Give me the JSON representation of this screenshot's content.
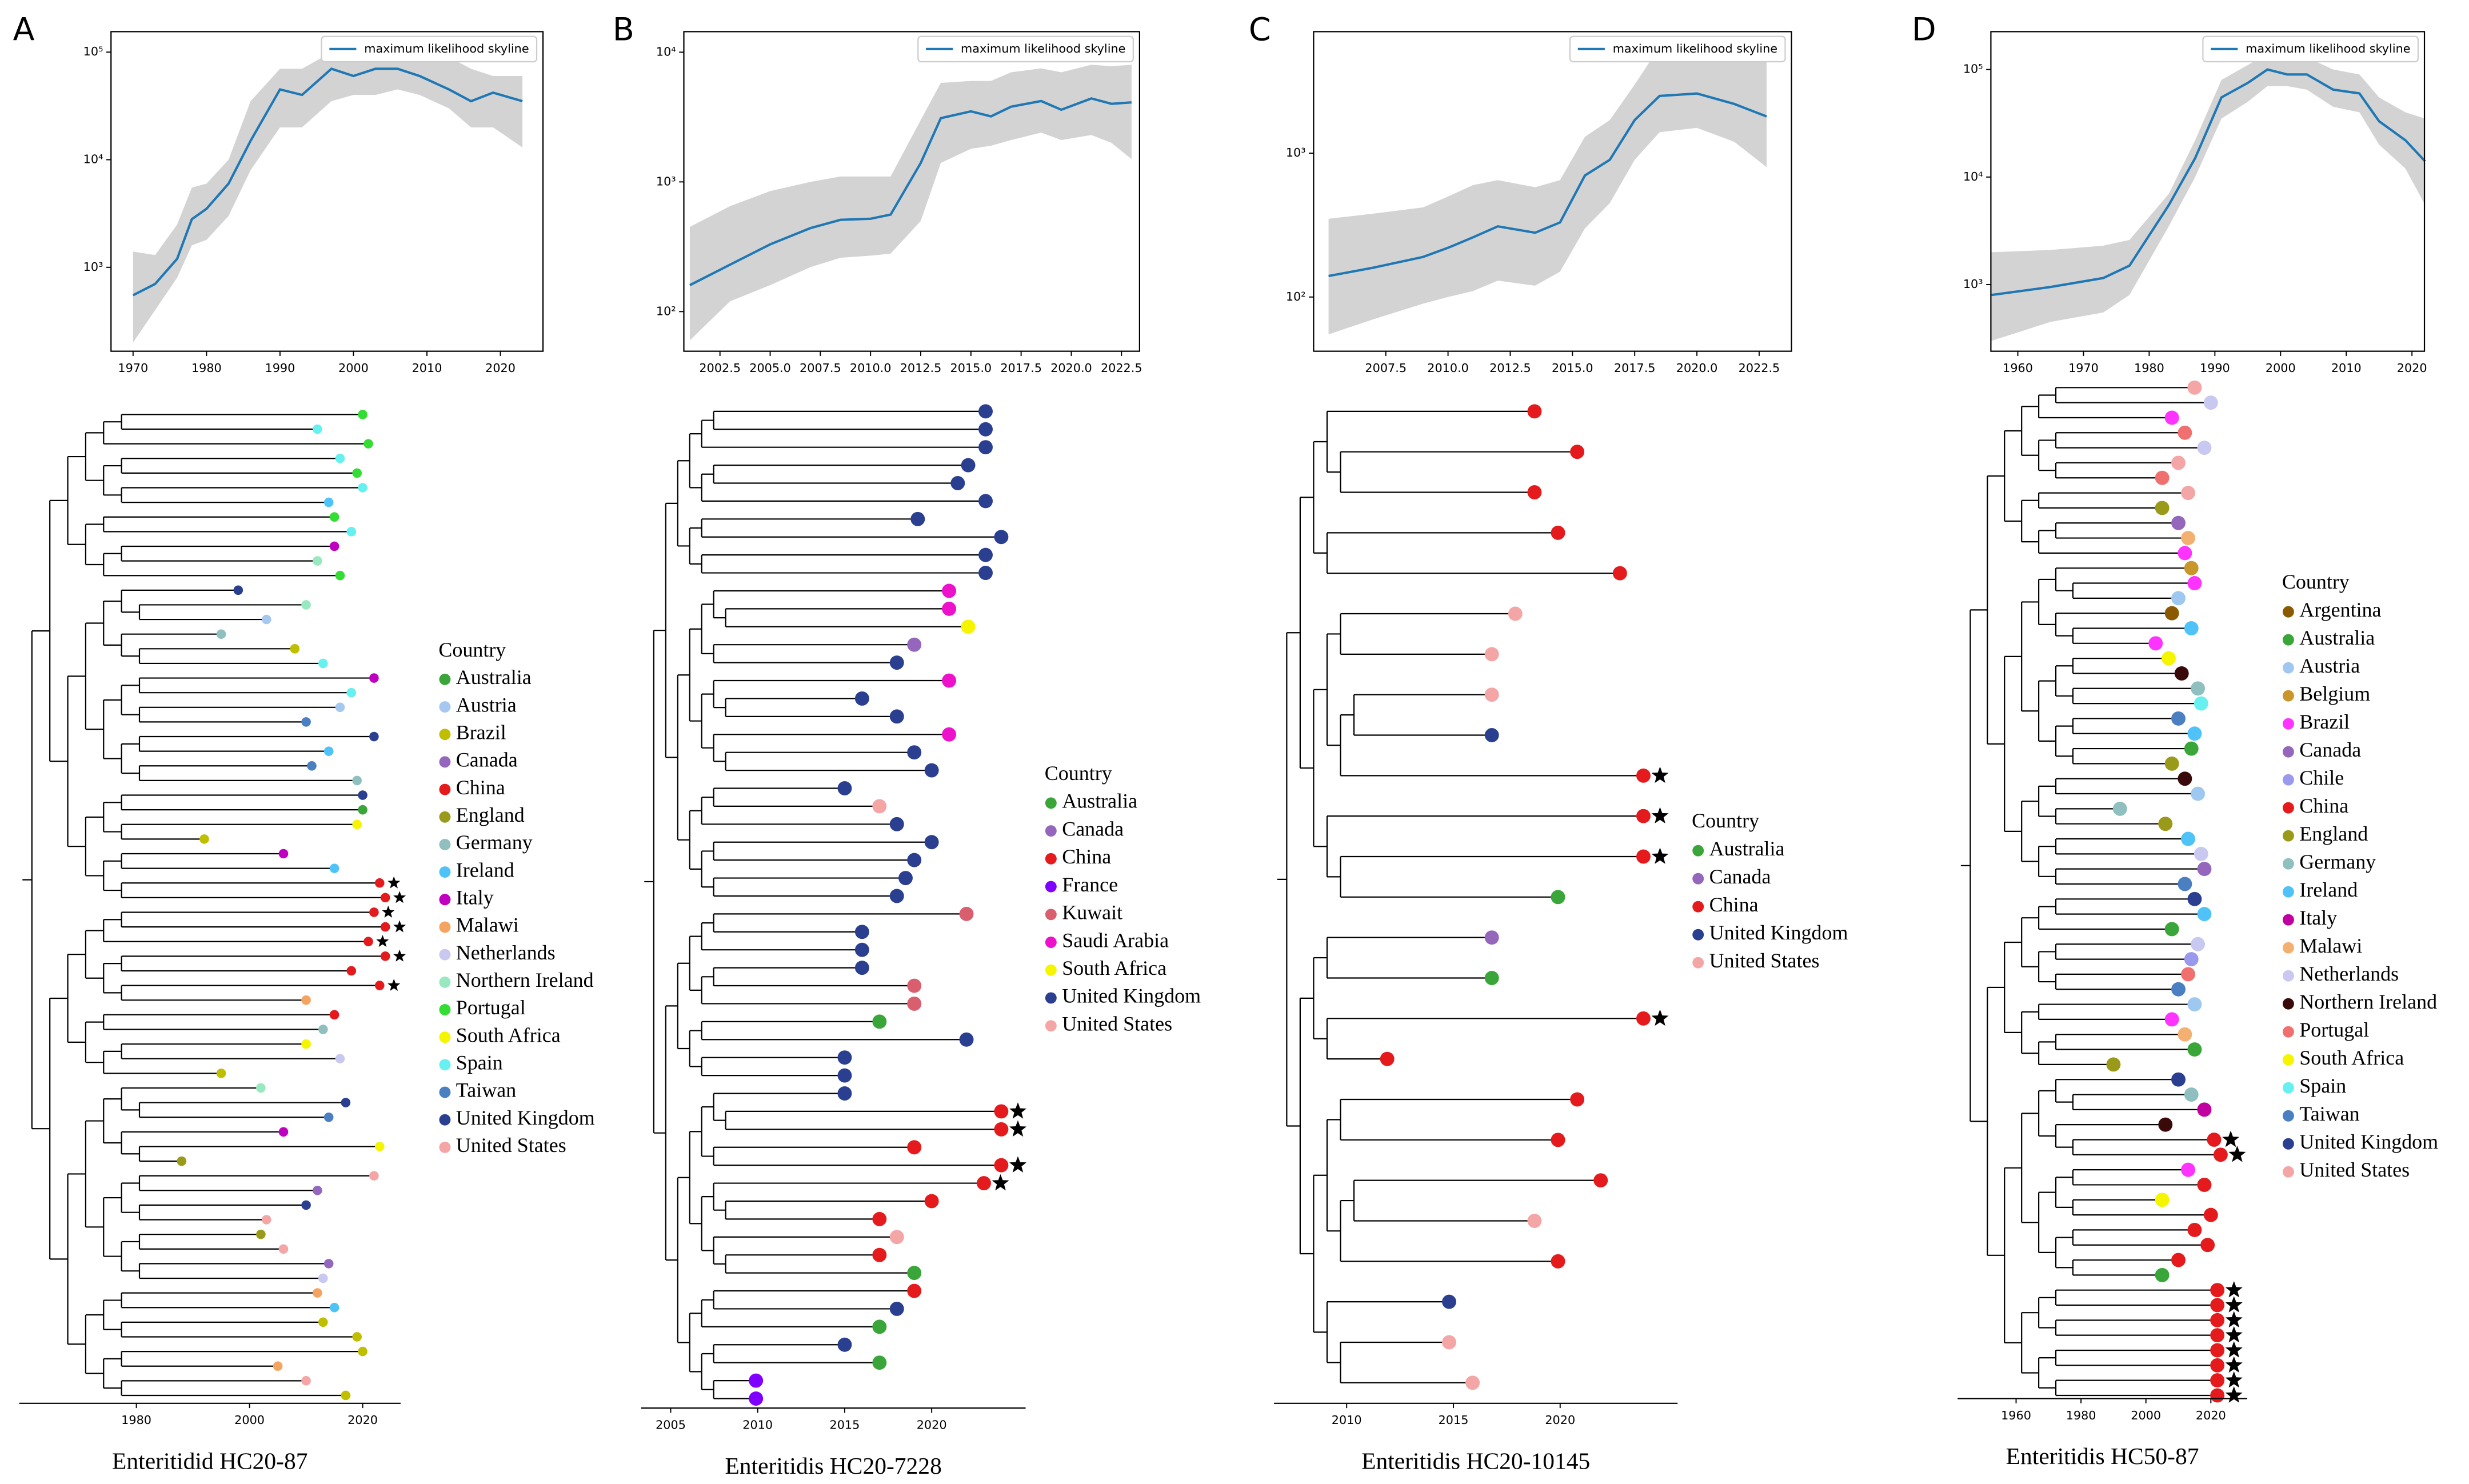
{
  "chart_data": [
    {
      "type": "line",
      "label": "A",
      "x": [
        1970,
        1973,
        1976,
        1978,
        1980,
        1983,
        1986,
        1990,
        1993,
        1997,
        2000,
        2003,
        2006,
        2009,
        2013,
        2016,
        2019,
        2023
      ],
      "series": [
        {
          "name": "maximum likelihood skyline",
          "color": "#1f77b4",
          "values": [
            550,
            700,
            1200,
            2800,
            3500,
            6000,
            15000,
            45000,
            40000,
            70000,
            60000,
            70000,
            70000,
            60000,
            45000,
            35000,
            42000,
            35000
          ],
          "lower": [
            200,
            400,
            800,
            1600,
            1800,
            3000,
            8000,
            20000,
            20000,
            35000,
            40000,
            40000,
            45000,
            40000,
            30000,
            20000,
            20000,
            13000
          ],
          "upper": [
            1400,
            1300,
            2500,
            5500,
            6000,
            10000,
            35000,
            70000,
            70000,
            100000,
            100000,
            120000,
            120000,
            110000,
            90000,
            70000,
            60000,
            60000
          ]
        }
      ],
      "band_color": "#d3d3d3",
      "log_y": true,
      "legend": "upper right",
      "xlim": [
        1967,
        2025.8
      ],
      "xticks": [
        1970,
        1980,
        1990,
        2000,
        2010,
        2020
      ],
      "ylim": [
        166,
        155000
      ],
      "yticks": [
        {
          "value": 1000,
          "label": "10³"
        },
        {
          "value": 10000,
          "label": "10⁴"
        },
        {
          "value": 100000,
          "label": "10⁵"
        }
      ]
    },
    {
      "type": "tree",
      "xlabel": "Enteritidid HC20-87",
      "xlim": [
        1959.3,
        2026.7
      ],
      "xticks": [
        1980,
        2000,
        2020
      ],
      "legend_title": "Country",
      "countries": [
        "Australia",
        "Austria",
        "Brazil",
        "Canada",
        "China",
        "England",
        "Germany",
        "Ireland",
        "Italy",
        "Malawi",
        "Netherlands",
        "Northern Ireland",
        "Portugal",
        "South Africa",
        "Spain",
        "Taiwan",
        "United Kingdom",
        "United States"
      ],
      "country_colors": [
        "#3aa63a",
        "#a6c8f0",
        "#bfbf00",
        "#9467bd",
        "#e41a1c",
        "#9a9a1a",
        "#8fbfbf",
        "#4fc3f7",
        "#c000c0",
        "#f4a460",
        "#c8c8f0",
        "#98e8c0",
        "#33dd33",
        "#f5f500",
        "#66f0f0",
        "#4a7fc1",
        "#2a3f8f",
        "#f4a6a6"
      ],
      "tip_countries": [
        "Portugal",
        "Spain",
        "Portugal",
        "Spain",
        "Portugal",
        "Spain",
        "Ireland",
        "Portugal",
        "Spain",
        "Italy",
        "Northern Ireland",
        "Portugal",
        "United Kingdom",
        "Northern Ireland",
        "Austria",
        "Germany",
        "Brazil",
        "Spain",
        "Italy",
        "Spain",
        "Austria",
        "Taiwan",
        "United Kingdom",
        "Ireland",
        "Taiwan",
        "Germany",
        "United Kingdom",
        "Australia",
        "South Africa",
        "Brazil",
        "Italy",
        "Ireland",
        "China",
        "China",
        "China",
        "China",
        "China",
        "China",
        "China",
        "China",
        "Malawi",
        "China",
        "Germany",
        "South Africa",
        "Netherlands",
        "Brazil",
        "Northern Ireland",
        "United Kingdom",
        "Taiwan",
        "Italy",
        "South Africa",
        "England",
        "United States",
        "Canada",
        "United Kingdom",
        "United States",
        "England",
        "United States",
        "Canada",
        "Netherlands",
        "Malawi",
        "Ireland",
        "Brazil",
        "Brazil",
        "Brazil",
        "Malawi",
        "United States",
        "Brazil"
      ],
      "tip_years": [
        2020,
        2012,
        2021,
        2016,
        2019,
        2020,
        2014,
        2015,
        2018,
        2015,
        2012,
        2016,
        1998,
        2010,
        2003,
        1995,
        2008,
        2013,
        2022,
        2018,
        2016,
        2010,
        2022,
        2014,
        2011,
        2019,
        2020,
        2020,
        2019,
        1992,
        2006,
        2015,
        2023,
        2024,
        2022,
        2024,
        2021,
        2024,
        2018,
        2023,
        2010,
        2015,
        2013,
        2010,
        2016,
        1995,
        2002,
        2017,
        2014,
        2006,
        2023,
        1988,
        2022,
        2012,
        2010,
        2003,
        2002,
        2006,
        2014,
        2013,
        2012,
        2015,
        2013,
        2019,
        2020,
        2005,
        2010,
        2017
      ],
      "starred": [
        32,
        33,
        34,
        35,
        36,
        37,
        39
      ]
    },
    {
      "type": "line",
      "label": "B",
      "x": [
        2001,
        2003,
        2005,
        2007,
        2008.5,
        2010,
        2011,
        2012.5,
        2013.5,
        2015,
        2016,
        2017,
        2018.5,
        2019.5,
        2021,
        2022,
        2023
      ],
      "series": [
        {
          "name": "maximum likelihood skyline",
          "color": "#1f77b4",
          "values": [
            160,
            230,
            330,
            440,
            510,
            520,
            560,
            1400,
            3100,
            3500,
            3200,
            3800,
            4200,
            3600,
            4400,
            4000,
            4100
          ],
          "lower": [
            60,
            120,
            160,
            220,
            260,
            270,
            280,
            500,
            1400,
            1800,
            1900,
            2100,
            2400,
            2100,
            2300,
            2000,
            1500
          ],
          "upper": [
            450,
            650,
            850,
            1000,
            1100,
            1100,
            1100,
            3000,
            5800,
            6000,
            6000,
            7000,
            7500,
            7000,
            8000,
            7800,
            8000
          ]
        }
      ],
      "band_color": "#d3d3d3",
      "log_y": true,
      "legend": "upper right",
      "xlim": [
        2000.7,
        2023.4
      ],
      "xticks": [
        2002.5,
        {
          "value": 2005,
          "label": "2005.0"
        },
        2007.5,
        {
          "value": 2010,
          "label": "2010.0"
        },
        2012.5,
        {
          "value": 2015,
          "label": "2015.0"
        },
        2017.5,
        {
          "value": 2020,
          "label": "2020.0"
        },
        2022.5
      ],
      "ylim": [
        49.5,
        14400
      ],
      "yticks": [
        {
          "value": 100,
          "label": "10²"
        },
        {
          "value": 1000,
          "label": "10³"
        },
        {
          "value": 10000,
          "label": "10⁴"
        }
      ]
    },
    {
      "type": "tree",
      "xlabel": "Enteritidis HC20-7228",
      "xlim": [
        2003.3,
        2025.4
      ],
      "xticks": [
        2005,
        2010,
        2015,
        2020
      ],
      "legend_title": "Country",
      "countries": [
        "Australia",
        "Canada",
        "China",
        "France",
        "Kuwait",
        "Saudi Arabia",
        "South Africa",
        "United Kingdom",
        "United States"
      ],
      "country_colors": [
        "#3aa63a",
        "#9467bd",
        "#e41a1c",
        "#7f00ff",
        "#d95f6e",
        "#ee11cc",
        "#f5f500",
        "#2a3f8f",
        "#f4a6a6"
      ],
      "tip_countries": [
        "United Kingdom",
        "United Kingdom",
        "United Kingdom",
        "United Kingdom",
        "United Kingdom",
        "United Kingdom",
        "United Kingdom",
        "United Kingdom",
        "United Kingdom",
        "United Kingdom",
        "Saudi Arabia",
        "Saudi Arabia",
        "South Africa",
        "Canada",
        "United Kingdom",
        "Saudi Arabia",
        "United Kingdom",
        "United Kingdom",
        "Saudi Arabia",
        "United Kingdom",
        "United Kingdom",
        "United Kingdom",
        "United States",
        "United Kingdom",
        "United Kingdom",
        "United Kingdom",
        "United Kingdom",
        "United Kingdom",
        "Kuwait",
        "United Kingdom",
        "United Kingdom",
        "United Kingdom",
        "Kuwait",
        "Kuwait",
        "Australia",
        "United Kingdom",
        "United Kingdom",
        "United Kingdom",
        "United Kingdom",
        "China",
        "China",
        "China",
        "China",
        "China",
        "China",
        "China",
        "United States",
        "China",
        "Australia",
        "China",
        "United Kingdom",
        "Australia",
        "United Kingdom",
        "Australia",
        "France",
        "France"
      ],
      "tip_years": [
        2023.1,
        2023.1,
        2023.1,
        2022.1,
        2021.5,
        2023.1,
        2019.2,
        2024,
        2023.1,
        2023.1,
        2021,
        2021,
        2022.1,
        2019,
        2018,
        2021,
        2016,
        2018,
        2021,
        2019,
        2020,
        2015,
        2017,
        2018,
        2020,
        2019,
        2018.5,
        2018,
        2022,
        2016,
        2016,
        2016,
        2019,
        2019,
        2017,
        2022,
        2015,
        2015,
        2015,
        2024,
        2024,
        2019,
        2024,
        2023,
        2020,
        2017,
        2018,
        2017,
        2019,
        2019,
        2018,
        2017,
        2015,
        2017,
        2009.9,
        2009.9
      ],
      "starred": [
        39,
        40,
        42,
        43
      ]
    },
    {
      "type": "line",
      "label": "C",
      "x": [
        2005.2,
        2007,
        2009,
        2010,
        2011,
        2012,
        2013.5,
        2014.5,
        2015.5,
        2016.5,
        2017.5,
        2018.5,
        2020,
        2021.5,
        2022.8
      ],
      "series": [
        {
          "name": "maximum likelihood skyline",
          "color": "#1f77b4",
          "values": [
            140,
            160,
            190,
            220,
            260,
            310,
            280,
            330,
            700,
            900,
            1700,
            2500,
            2600,
            2200,
            1800
          ],
          "lower": [
            55,
            70,
            90,
            100,
            110,
            130,
            120,
            150,
            300,
            450,
            900,
            1400,
            1500,
            1200,
            800
          ],
          "upper": [
            350,
            380,
            420,
            500,
            600,
            650,
            580,
            650,
            1300,
            1700,
            3000,
            5500,
            6500,
            6000,
            4500
          ]
        }
      ],
      "band_color": "#d3d3d3",
      "log_y": true,
      "legend": "upper right",
      "xlim": [
        2004.6,
        2023.8
      ],
      "xticks": [
        2007.5,
        {
          "value": 2010,
          "label": "2010.0"
        },
        2012.5,
        {
          "value": 2015,
          "label": "2015.0"
        },
        2017.5,
        {
          "value": 2020,
          "label": "2020.0"
        },
        2022.5
      ],
      "ylim": [
        42,
        7000
      ],
      "yticks": [
        {
          "value": 100,
          "label": "10²"
        },
        {
          "value": 1000,
          "label": "10³"
        }
      ]
    },
    {
      "type": "tree",
      "xlabel": "Enteritidis HC20-10145",
      "xlim": [
        2006.6,
        2025.5
      ],
      "xticks": [
        2010,
        2015,
        2020
      ],
      "legend_title": "Country",
      "countries": [
        "Australia",
        "Canada",
        "China",
        "United Kingdom",
        "United States"
      ],
      "country_colors": [
        "#3aa63a",
        "#9467bd",
        "#e41a1c",
        "#2a3f8f",
        "#f4a6a6"
      ],
      "tip_countries": [
        "China",
        "China",
        "China",
        "China",
        "China",
        "United States",
        "United States",
        "United States",
        "United Kingdom",
        "China",
        "China",
        "China",
        "Australia",
        "Canada",
        "Australia",
        "China",
        "China",
        "China",
        "China",
        "China",
        "United States",
        "China",
        "United Kingdom",
        "United States",
        "United States"
      ],
      "tip_years": [
        2018.8,
        2020.8,
        2018.8,
        2019.9,
        2022.8,
        2017.9,
        2016.8,
        2016.8,
        2016.8,
        2023.9,
        2023.9,
        2023.9,
        2019.9,
        2016.8,
        2016.8,
        2023.9,
        2011.9,
        2020.8,
        2019.9,
        2021.9,
        2018.8,
        2019.9,
        2014.8,
        2014.8,
        2015.9
      ],
      "starred": [
        9,
        10,
        11,
        15
      ]
    },
    {
      "type": "line",
      "label": "D",
      "x": [
        1956,
        1965,
        1973,
        1977,
        1983,
        1987,
        1991,
        1995,
        1998,
        2001,
        2004,
        2008,
        2012,
        2015,
        2019,
        2022
      ],
      "series": [
        {
          "name": "maximum likelihood skyline",
          "color": "#1f77b4",
          "values": [
            800,
            950,
            1150,
            1500,
            5500,
            15000,
            55000,
            75000,
            100000,
            90000,
            90000,
            65000,
            60000,
            33000,
            22000,
            14000
          ],
          "lower": [
            300,
            450,
            550,
            800,
            3500,
            10000,
            35000,
            50000,
            70000,
            70000,
            65000,
            45000,
            40000,
            20000,
            12000,
            5500
          ],
          "upper": [
            2000,
            2100,
            2300,
            2600,
            7000,
            22000,
            80000,
            110000,
            140000,
            130000,
            130000,
            100000,
            90000,
            55000,
            40000,
            35000
          ]
        }
      ],
      "band_color": "#d3d3d3",
      "log_y": true,
      "legend": "upper right",
      "xlim": [
        1955.9,
        2021.9
      ],
      "xticks": [
        1960,
        1970,
        1980,
        1990,
        2000,
        2010,
        2020
      ],
      "ylim": [
        240,
        225000
      ],
      "yticks": [
        {
          "value": 1000,
          "label": "10³"
        },
        {
          "value": 10000,
          "label": "10⁴"
        },
        {
          "value": 100000,
          "label": "10⁵"
        }
      ]
    },
    {
      "type": "tree",
      "xlabel": "Enteritidis HC50-87",
      "xlim": [
        1942,
        2031.2
      ],
      "xticks": [
        1960,
        1980,
        2000,
        2020
      ],
      "legend_title": "Country",
      "countries": [
        "Argentina",
        "Australia",
        "Austria",
        "Belgium",
        "Brazil",
        "Canada",
        "Chile",
        "China",
        "England",
        "Germany",
        "Ireland",
        "Italy",
        "Malawi",
        "Netherlands",
        "Northern Ireland",
        "Portugal",
        "South Africa",
        "Spain",
        "Taiwan",
        "United Kingdom",
        "United States"
      ],
      "country_colors": [
        "#8b5a00",
        "#3aa63a",
        "#9fc8f0",
        "#c8962a",
        "#ff33ff",
        "#9467bd",
        "#9999ee",
        "#e41a1c",
        "#9a9a1a",
        "#8fbfbf",
        "#4fc3f7",
        "#c000a0",
        "#f4b070",
        "#c8c8f0",
        "#3a0a0a",
        "#f07070",
        "#f5f500",
        "#66f0f0",
        "#4a7fc1",
        "#2a3f8f",
        "#f4a6a6"
      ],
      "tip_countries": [
        "United States",
        "Netherlands",
        "Brazil",
        "Portugal",
        "Netherlands",
        "United States",
        "Portugal",
        "United States",
        "England",
        "Canada",
        "Malawi",
        "Brazil",
        "Belgium",
        "Brazil",
        "Austria",
        "Argentina",
        "Ireland",
        "Brazil",
        "South Africa",
        "Northern Ireland",
        "Germany",
        "Spain",
        "Taiwan",
        "Ireland",
        "Australia",
        "England",
        "Northern Ireland",
        "Austria",
        "Germany",
        "England",
        "Ireland",
        "Netherlands",
        "Canada",
        "Taiwan",
        "United Kingdom",
        "Ireland",
        "Australia",
        "Netherlands",
        "Chile",
        "Portugal",
        "Taiwan",
        "Austria",
        "Brazil",
        "Malawi",
        "Australia",
        "England",
        "United Kingdom",
        "Germany",
        "Italy",
        "Northern Ireland",
        "China",
        "China",
        "Brazil",
        "China",
        "South Africa",
        "China",
        "China",
        "China",
        "China",
        "Australia",
        "China",
        "China",
        "China",
        "China",
        "China",
        "China",
        "China",
        "China"
      ],
      "tip_years": [
        2015,
        2020,
        2008,
        2012,
        2018,
        2010,
        2005,
        2013,
        2005,
        2010,
        2013,
        2012,
        2014,
        2015,
        2010,
        2008,
        2014,
        2003,
        2007,
        2011,
        2016,
        2017,
        2010,
        2015,
        2014,
        2008,
        2012,
        2016,
        1992,
        2006,
        2013,
        2017,
        2018,
        2012,
        2015,
        2018,
        2008,
        2016,
        2014,
        2013,
        2010,
        2015,
        2008,
        2012,
        2015,
        1990,
        2010,
        2014,
        2018,
        2006,
        2021,
        2023,
        2013,
        2018,
        2005,
        2020,
        2015,
        2019,
        2010,
        2005,
        2022,
        2022,
        2022,
        2022,
        2022,
        2022,
        2022,
        2022
      ],
      "starred": [
        50,
        51,
        60,
        61,
        62,
        63,
        64,
        65,
        66,
        67
      ]
    }
  ]
}
